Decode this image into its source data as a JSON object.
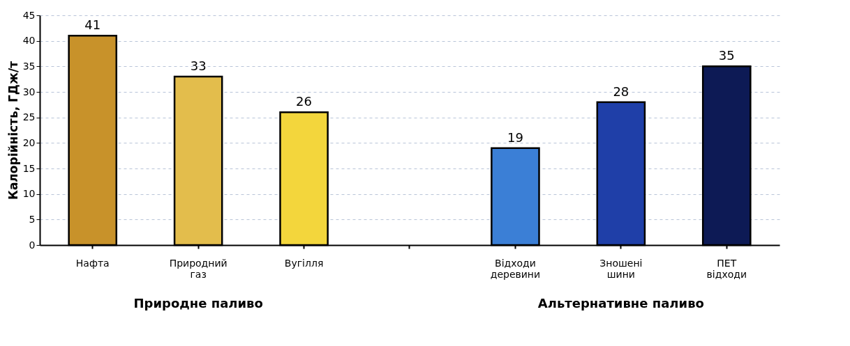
{
  "chart_data": {
    "type": "bar",
    "ylabel": "Калорійність, ГДж/т",
    "categories": [
      "Нафта",
      "Природний газ",
      "Вугілля",
      null,
      "Відходи деревини",
      "Зношені шини",
      "ПЕТ відходи"
    ],
    "values": [
      41,
      33,
      26,
      null,
      19,
      28,
      35
    ],
    "colors": [
      "#c8922a",
      "#e3bd4c",
      "#f3d63c",
      "#ffffff",
      "#3b7fd6",
      "#1f3fa8",
      "#0d1a55"
    ],
    "ylim": [
      0,
      45
    ],
    "yticks": [
      0,
      5,
      10,
      15,
      20,
      25,
      30,
      35,
      40,
      45
    ],
    "grid": "y",
    "line_style": "dashed",
    "data_labels": true,
    "annotations": [
      "Природне паливо",
      "Альтернативне паливо"
    ]
  }
}
